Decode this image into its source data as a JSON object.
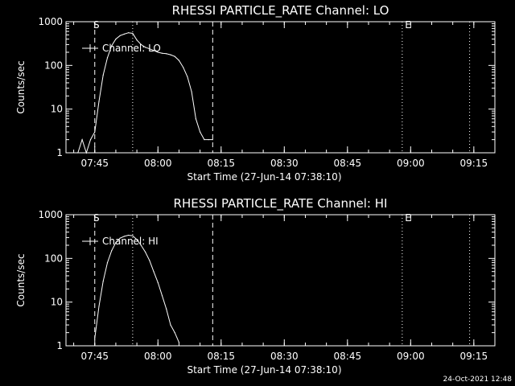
{
  "footer": {
    "timestamp": "24-Oct-2021 12:48"
  },
  "colors": {
    "background": "#000000",
    "foreground": "#ffffff"
  },
  "chart_data": [
    {
      "type": "line",
      "title": "RHESSI PARTICLE_RATE Channel: LO",
      "xlabel": "Start Time (27-Jun-14 07:38:10)",
      "ylabel": "Counts/sec",
      "y_scale": "log",
      "ylim": [
        1,
        1000
      ],
      "xlim": [
        "07:38:10",
        "09:20:00"
      ],
      "xticks": [
        "07:45",
        "08:00",
        "08:15",
        "08:30",
        "08:45",
        "09:00",
        "09:15"
      ],
      "yticks": [
        "1",
        "10",
        "100",
        "1000"
      ],
      "legend": {
        "position": "top-left",
        "entries": [
          "Channel: LO"
        ]
      },
      "annotations": [
        {
          "text": "S",
          "at": "07:45"
        },
        {
          "text": "E",
          "at": "08:59"
        }
      ],
      "vlines": [
        {
          "at": "07:45",
          "style": "dashed"
        },
        {
          "at": "07:54",
          "style": "dotted"
        },
        {
          "at": "08:13",
          "style": "dashed"
        },
        {
          "at": "08:58",
          "style": "dotted"
        },
        {
          "at": "09:14",
          "style": "dotted"
        }
      ],
      "series": [
        {
          "name": "Channel: LO",
          "x": [
            "07:41",
            "07:42",
            "07:43",
            "07:44",
            "07:45",
            "07:46",
            "07:47",
            "07:48",
            "07:49",
            "07:50",
            "07:51",
            "07:52",
            "07:53",
            "07:54",
            "07:55",
            "07:56",
            "07:57",
            "07:58",
            "07:59",
            "08:00",
            "08:01",
            "08:02",
            "08:03",
            "08:04",
            "08:05",
            "08:06",
            "08:07",
            "08:08",
            "08:09",
            "08:10",
            "08:11",
            "08:12",
            "08:13"
          ],
          "values": [
            1,
            2,
            1,
            2,
            3,
            15,
            60,
            150,
            280,
            400,
            480,
            520,
            560,
            540,
            380,
            300,
            260,
            240,
            220,
            200,
            190,
            185,
            175,
            160,
            130,
            90,
            55,
            25,
            6,
            3,
            2,
            2,
            2
          ]
        }
      ]
    },
    {
      "type": "line",
      "title": "RHESSI PARTICLE_RATE Channel: HI",
      "xlabel": "Start Time (27-Jun-14 07:38:10)",
      "ylabel": "Counts/sec",
      "y_scale": "log",
      "ylim": [
        1,
        1000
      ],
      "xlim": [
        "07:38:10",
        "09:20:00"
      ],
      "xticks": [
        "07:45",
        "08:00",
        "08:15",
        "08:30",
        "08:45",
        "09:00",
        "09:15"
      ],
      "yticks": [
        "1",
        "10",
        "100",
        "1000"
      ],
      "legend": {
        "position": "top-left",
        "entries": [
          "Channel: HI"
        ]
      },
      "annotations": [
        {
          "text": "S",
          "at": "07:45"
        },
        {
          "text": "E",
          "at": "08:59"
        }
      ],
      "vlines": [
        {
          "at": "07:45",
          "style": "dashed"
        },
        {
          "at": "07:54",
          "style": "dotted"
        },
        {
          "at": "08:13",
          "style": "dashed"
        },
        {
          "at": "08:58",
          "style": "dotted"
        },
        {
          "at": "09:14",
          "style": "dotted"
        }
      ],
      "series": [
        {
          "name": "Channel: HI",
          "x": [
            "07:45",
            "07:46",
            "07:47",
            "07:48",
            "07:49",
            "07:50",
            "07:51",
            "07:52",
            "07:53",
            "07:54",
            "07:55",
            "07:56",
            "07:57",
            "07:58",
            "07:59",
            "08:00",
            "08:01",
            "08:02",
            "08:03",
            "08:04",
            "08:05"
          ],
          "values": [
            1.5,
            8,
            30,
            80,
            150,
            230,
            290,
            320,
            340,
            330,
            270,
            200,
            140,
            90,
            50,
            28,
            14,
            7,
            3,
            2,
            1.2
          ]
        }
      ]
    }
  ]
}
